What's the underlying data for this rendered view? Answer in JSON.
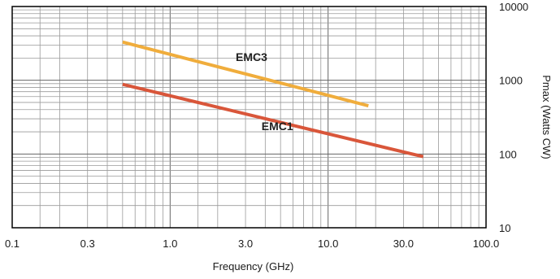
{
  "chart_data": {
    "type": "line",
    "xlabel": "Frequency (GHz)",
    "ylabel": "Pmax (Watts CW)",
    "x_scale": "log",
    "y_scale": "log",
    "xlim": [
      0.1,
      100.0
    ],
    "ylim": [
      10,
      10000
    ],
    "x_ticks": [
      0.1,
      0.3,
      1.0,
      3.0,
      10.0,
      30.0,
      100.0
    ],
    "x_tick_labels": [
      "0.1",
      "0.3",
      "1.0",
      "3.0",
      "10.0",
      "30.0",
      "100.0"
    ],
    "y_ticks": [
      10,
      100,
      1000,
      10000
    ],
    "y_tick_labels": [
      "10",
      "100",
      "1000",
      "10000"
    ],
    "grid": true,
    "series": [
      {
        "name": "EMC3",
        "color": "#F0AD3C",
        "x": [
          0.5,
          18.0
        ],
        "y": [
          3300,
          450
        ]
      },
      {
        "name": "EMC1",
        "color": "#D9563A",
        "x": [
          0.5,
          40.0
        ],
        "y": [
          880,
          92
        ]
      }
    ]
  }
}
